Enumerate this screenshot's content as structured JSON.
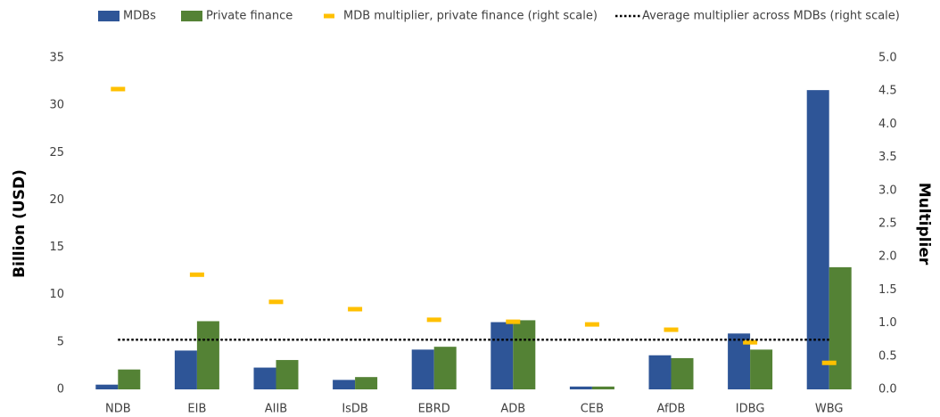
{
  "chart_data": {
    "type": "bar",
    "categories": [
      "NDB",
      "EIB",
      "AIIB",
      "IsDB",
      "EBRD",
      "ADB",
      "CEB",
      "AfDB",
      "IDBG",
      "WBG"
    ],
    "series": [
      {
        "name": "MDBs",
        "color": "#2e5597",
        "values": [
          0.5,
          4.1,
          2.3,
          1.0,
          4.2,
          7.1,
          0.3,
          3.6,
          5.9,
          31.6
        ]
      },
      {
        "name": "Private finance",
        "color": "#548235",
        "values": [
          2.1,
          7.2,
          3.1,
          1.3,
          4.5,
          7.3,
          0.3,
          3.3,
          4.2,
          12.9
        ]
      },
      {
        "name": "MDB multiplier, private finance (right scale)",
        "color": "#ffc000",
        "axis": "y2",
        "values": [
          4.53,
          1.73,
          1.32,
          1.21,
          1.05,
          1.02,
          0.98,
          0.9,
          0.71,
          0.4
        ]
      }
    ],
    "reference_line": {
      "name": "Average multiplier across MDBs (right scale)",
      "color": "#000000",
      "axis": "y2",
      "value": 0.75
    },
    "ylabel": "Billion (USD)",
    "y2label": "Multiplier",
    "ylim": [
      0,
      35
    ],
    "yticks": [
      0,
      5,
      10,
      15,
      20,
      25,
      30,
      35
    ],
    "y2lim": [
      0,
      5
    ],
    "y2ticks": [
      {
        "value": 0,
        "label": "0.0"
      },
      0.5,
      {
        "value": 1,
        "label": "1.0"
      },
      1.5,
      {
        "value": 2,
        "label": "2.0"
      },
      2.5,
      {
        "value": 3,
        "label": "3.0"
      },
      3.5,
      {
        "value": 4,
        "label": "4.0"
      },
      4.5,
      {
        "value": 5,
        "label": "5.0"
      }
    ],
    "grid": false
  }
}
